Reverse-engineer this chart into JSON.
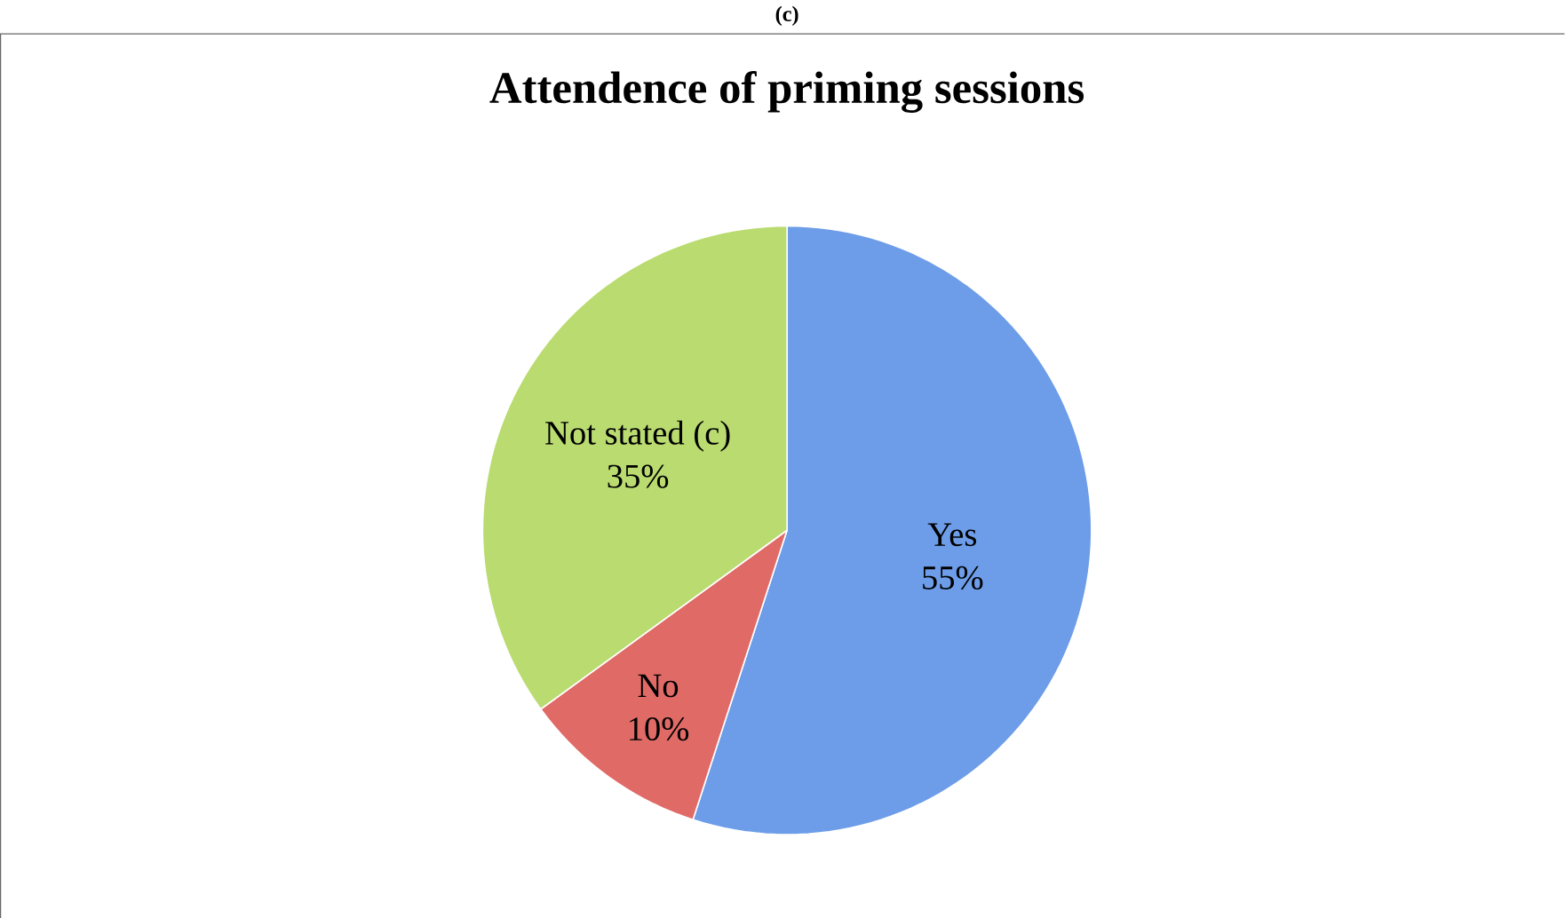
{
  "chart_data": {
    "type": "pie",
    "title": "Attendence of priming sessions",
    "annotations": [
      "(c)"
    ],
    "categories": [
      "Yes",
      "No",
      "Not stated (c)"
    ],
    "values": [
      55,
      10,
      35
    ],
    "value_labels": [
      "55%",
      "10%",
      "35%"
    ],
    "colors": [
      "#6d9de8",
      "#e06a66",
      "#b9db70"
    ]
  }
}
